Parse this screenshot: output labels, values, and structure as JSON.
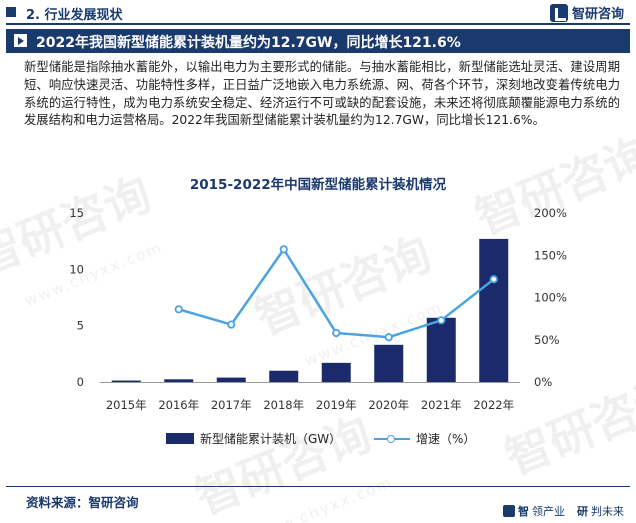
{
  "header": {
    "section_title": "2. 行业发展现状",
    "brand_name": "智研咨询"
  },
  "headline": {
    "text": "2022年我国新型储能累计装机量约为12.7GW，同比增长121.6%"
  },
  "intro_text": "新型储能是指除抽水蓄能外，以输出电力为主要形式的储能。与抽水蓄能相比，新型储能选址灵活、建设周期短、响应快速灵活、功能特性多样，正日益广泛地嵌入电力系统源、网、荷各个环节，深刻地改变着传统电力系统的运行特性，成为电力系统安全稳定、经济运行不可或缺的配套设施，未来还将彻底颠覆能源电力系统的发展结构和电力运营格局。2022年我国新型储能累计装机量约为12.7GW，同比增长121.6%。",
  "watermark": {
    "text": "智研咨询",
    "url": "www.chyxx.com"
  },
  "chart_data": {
    "type": "bar",
    "title": "2015-2022年中国新型储能累计装机情况",
    "categories": [
      "2015年",
      "2016年",
      "2017年",
      "2018年",
      "2019年",
      "2020年",
      "2021年",
      "2022年"
    ],
    "series": [
      {
        "name": "新型储能累计装机（GW）",
        "type": "bar",
        "axis": "left",
        "values": [
          0.13,
          0.24,
          0.39,
          1.0,
          1.7,
          3.3,
          5.7,
          12.7
        ]
      },
      {
        "name": "增速（%）",
        "type": "line",
        "axis": "right",
        "values": [
          null,
          86,
          68,
          157,
          58,
          53,
          73,
          121.6
        ]
      }
    ],
    "y_left": {
      "min": 0,
      "max": 15,
      "ticks": [
        0,
        5,
        10,
        15
      ],
      "tick_labels": [
        "0",
        "5",
        "10",
        "15"
      ]
    },
    "y_right": {
      "min": 0,
      "max": 200,
      "ticks": [
        0,
        50,
        100,
        150,
        200
      ],
      "tick_labels": [
        "0%",
        "50%",
        "100%",
        "150%",
        "200%"
      ]
    },
    "grid": false,
    "legend_position": "bottom",
    "colors": {
      "bar": "#1b2a6b",
      "line": "#4aa3e0",
      "axis": "#999999"
    }
  },
  "footer": {
    "source_text": "资料来源：智研咨询",
    "brand_part1": "智",
    "brand_part2": "领产业",
    "brand_part3": "研",
    "brand_part4": "判未来"
  }
}
